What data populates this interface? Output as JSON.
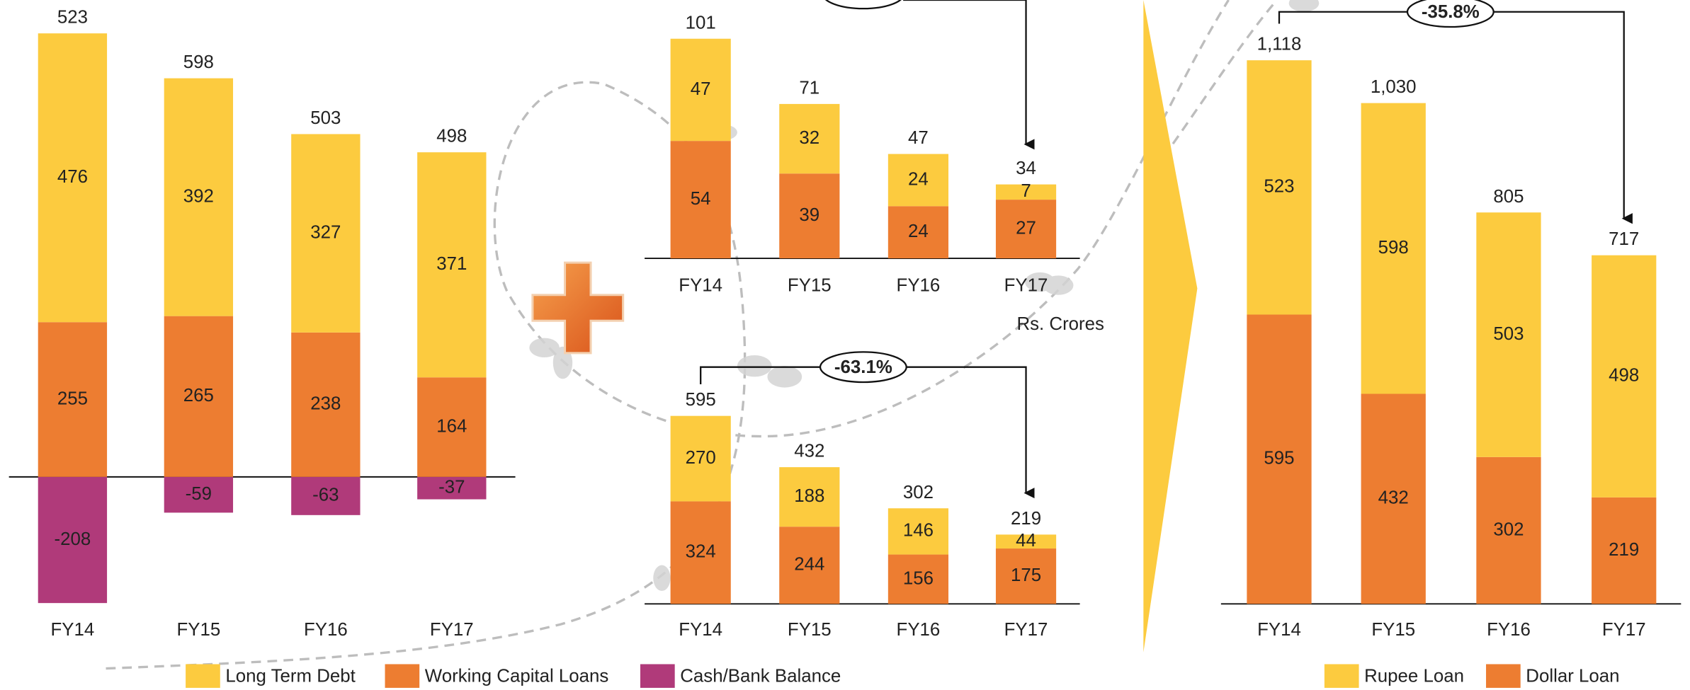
{
  "chart_data": [
    {
      "type": "bar",
      "stacked": true,
      "categories": [
        "FY14",
        "FY15",
        "FY16",
        "FY17"
      ],
      "series": [
        {
          "name": "Long Term Debt",
          "color": "#fccb3f",
          "values": [
            476,
            392,
            327,
            371
          ]
        },
        {
          "name": "Working Capital Loans",
          "color": "#ed7d31",
          "values": [
            255,
            265,
            238,
            164
          ]
        },
        {
          "name": "Cash/Bank Balance",
          "color": "#b03a7a",
          "values": [
            -208,
            -59,
            -63,
            -37
          ]
        }
      ],
      "totals": [
        523,
        598,
        503,
        498
      ]
    },
    {
      "type": "bar",
      "stacked": true,
      "categories": [
        "FY14",
        "FY15",
        "FY16",
        "FY17"
      ],
      "series": [
        {
          "color": "#fccb3f",
          "values": [
            47,
            32,
            24,
            7
          ]
        },
        {
          "color": "#ed7d31",
          "values": [
            54,
            39,
            24,
            27
          ]
        }
      ],
      "totals": [
        101,
        71,
        47,
        34
      ],
      "unit_label": "Rs. Crores"
    },
    {
      "type": "bar",
      "stacked": true,
      "categories": [
        "FY14",
        "FY15",
        "FY16",
        "FY17"
      ],
      "series": [
        {
          "color": "#fccb3f",
          "values": [
            270,
            188,
            146,
            44
          ]
        },
        {
          "color": "#ed7d31",
          "values": [
            324,
            244,
            156,
            175
          ]
        }
      ],
      "totals": [
        595,
        432,
        302,
        219
      ],
      "annotation": "-63.1%"
    },
    {
      "type": "bar",
      "stacked": true,
      "categories": [
        "FY14",
        "FY15",
        "FY16",
        "FY17"
      ],
      "series": [
        {
          "name": "Rupee Loan",
          "color": "#fccb3f",
          "values": [
            523,
            598,
            503,
            498
          ]
        },
        {
          "name": "Dollar Loan",
          "color": "#ed7d31",
          "values": [
            595,
            432,
            302,
            219
          ]
        }
      ],
      "totals": [
        {
          "value": 1118,
          "label": "1,118"
        },
        {
          "value": 1030,
          "label": "1,030"
        },
        805,
        717
      ],
      "annotation": "-35.8%"
    }
  ]
}
